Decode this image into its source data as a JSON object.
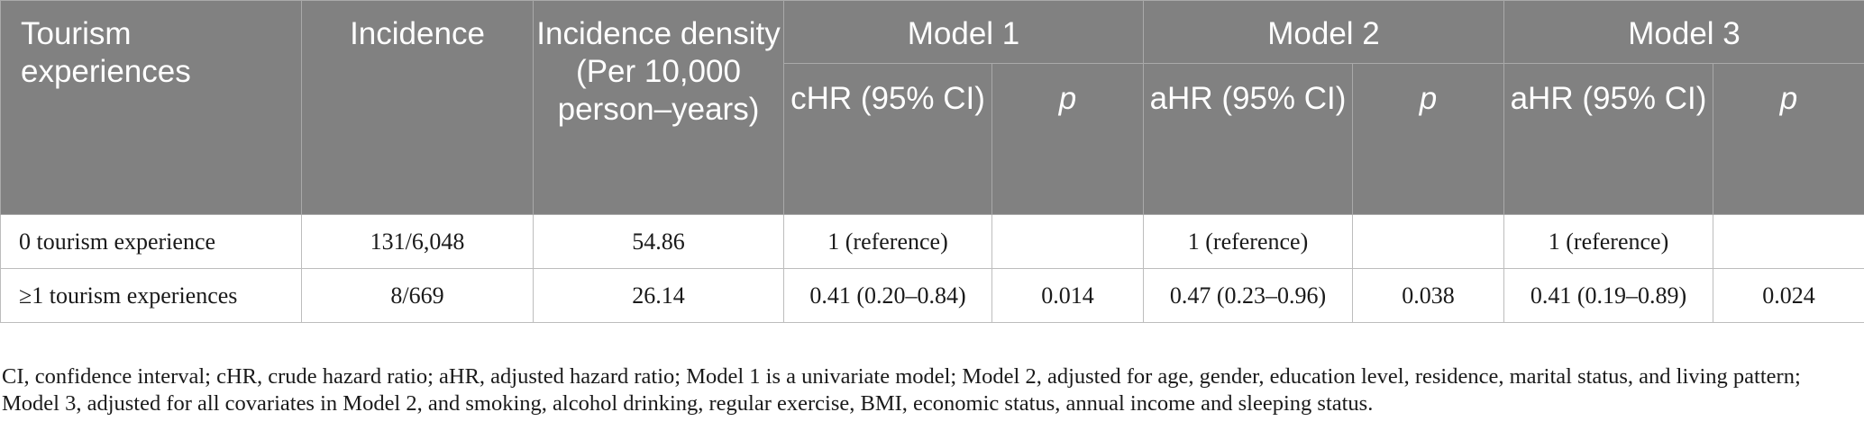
{
  "table": {
    "header": {
      "col_tourism": "Tourism experiences",
      "col_incidence": "Incidence",
      "col_density": "Incidence density (Per 10,000 person–years)",
      "model1": "Model 1",
      "model2": "Model 2",
      "model3": "Model 3",
      "sub": {
        "m1_hr": "cHR (95% CI)",
        "m1_p": "p",
        "m2_hr": "aHR (95% CI)",
        "m2_p": "p",
        "m3_hr": "aHR (95% CI)",
        "m3_p": "p"
      }
    },
    "rows": [
      {
        "group": "0 tourism experience",
        "incidence": "131/6,048",
        "density": "54.86",
        "m1_hr": "1 (reference)",
        "m1_p": "",
        "m2_hr": "1 (reference)",
        "m2_p": "",
        "m3_hr": "1 (reference)",
        "m3_p": ""
      },
      {
        "group": "≥1 tourism experiences",
        "incidence": "8/669",
        "density": "26.14",
        "m1_hr": "0.41 (0.20–0.84)",
        "m1_p": "0.014",
        "m2_hr": "0.47 (0.23–0.96)",
        "m2_p": "0.038",
        "m3_hr": "0.41 (0.19–0.89)",
        "m3_p": "0.024"
      }
    ]
  },
  "footnote": "CI, confidence interval; cHR, crude hazard ratio; aHR, adjusted hazard ratio; Model 1 is a univariate model; Model 2, adjusted for age, gender, education level, residence, marital status, and living pattern; Model 3, adjusted for all covariates in Model 2, and smoking, alcohol drinking, regular exercise, BMI, economic status, annual income and sleeping status.",
  "colors": {
    "header_bg": "#818181",
    "header_text": "#ffffff",
    "grid": "#bdbdbd"
  }
}
